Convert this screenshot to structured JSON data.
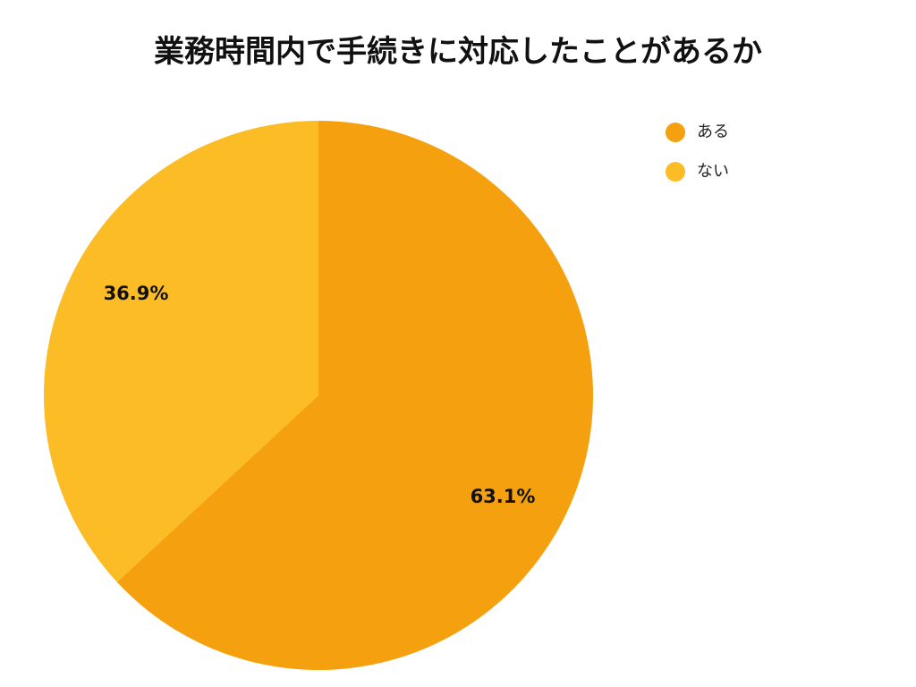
{
  "chart_data": {
    "type": "pie",
    "title": "業務時間内で手続きに対応したことがあるか",
    "categories": [
      "ある",
      "ない"
    ],
    "values": [
      63.1,
      36.9
    ],
    "labels": [
      "63.1%",
      "36.9%"
    ],
    "colors": [
      "#F5A00F",
      "#FBBC25"
    ],
    "start_angle": "12 o'clock",
    "direction": "clockwise",
    "legend_position": "right-top"
  },
  "header": {
    "title": "業務時間内で手続きに対応したことがあるか"
  },
  "legend": {
    "items": [
      {
        "label": "ある",
        "color": "#F5A00F"
      },
      {
        "label": "ない",
        "color": "#FBBC25"
      }
    ]
  },
  "slices": [
    {
      "name": "ある",
      "label": "63.1%",
      "color": "#F5A00F"
    },
    {
      "name": "ない",
      "label": "36.9%",
      "color": "#FBBC25"
    }
  ]
}
